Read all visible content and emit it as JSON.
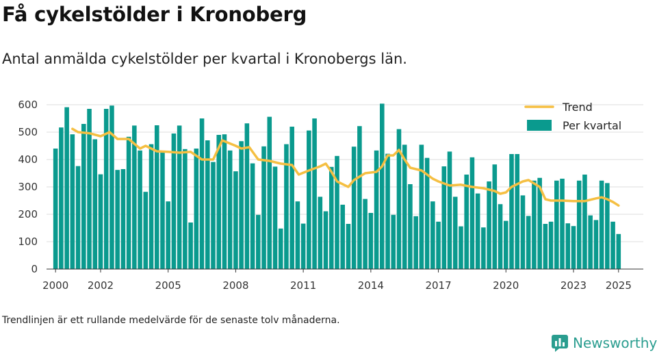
{
  "title": "Få cykelstölder i Kronoberg",
  "subtitle": "Antal anmälda cykelstölder per kvartal i Kronobergs län.",
  "footnote": "Trendlinjen är ett rullande medelvärde för de senaste tolv månaderna.",
  "brand": {
    "name": "Newsworthy",
    "icon": "newsworthy-logo-icon",
    "color": "#2a9d8f"
  },
  "colors": {
    "bars": "#0a9a8e",
    "trend": "#f5bf42",
    "grid": "#dddddd",
    "axis": "#333333"
  },
  "chart_data": {
    "type": "bar",
    "title": "Få cykelstölder i Kronoberg",
    "xlabel": "",
    "ylabel": "",
    "ylim": [
      0,
      600
    ],
    "yticks": [
      0,
      100,
      200,
      300,
      400,
      500,
      600
    ],
    "xticks": [
      "2000",
      "2002",
      "2005",
      "2008",
      "2011",
      "2014",
      "2017",
      "2020",
      "2023",
      "2025"
    ],
    "xlim": [
      1999.6,
      2026.1
    ],
    "legend": {
      "position": "top-right",
      "entries": [
        "Trend",
        "Per kvartal"
      ]
    },
    "grid": true,
    "series": [
      {
        "name": "Per kvartal",
        "type": "bar",
        "start_year": 2000,
        "values": [
          440,
          517,
          591,
          492,
          376,
          530,
          585,
          474,
          346,
          585,
          597,
          362,
          365,
          483,
          524,
          433,
          282,
          456,
          525,
          431,
          247,
          495,
          524,
          438,
          170,
          440,
          550,
          470,
          391,
          490,
          492,
          433,
          357,
          467,
          532,
          386,
          198,
          448,
          556,
          374,
          148,
          456,
          520,
          247,
          166,
          506,
          550,
          264,
          211,
          373,
          413,
          235,
          165,
          447,
          522,
          256,
          205,
          433,
          604,
          421,
          198,
          511,
          454,
          310,
          193,
          454,
          406,
          247,
          173,
          375,
          429,
          264,
          156,
          345,
          408,
          276,
          152,
          320,
          382,
          237,
          176,
          420,
          420,
          269,
          194,
          323,
          333,
          165,
          173,
          323,
          330,
          167,
          157,
          323,
          345,
          196,
          179,
          323,
          314,
          173,
          128
        ]
      },
      {
        "name": "Trend",
        "type": "line",
        "points": [
          [
            2000.75,
            512
          ],
          [
            2001.0,
            500
          ],
          [
            2001.5,
            496
          ],
          [
            2002.0,
            485
          ],
          [
            2002.4,
            500
          ],
          [
            2002.75,
            475
          ],
          [
            2003.25,
            475
          ],
          [
            2003.75,
            440
          ],
          [
            2004.0,
            450
          ],
          [
            2004.5,
            430
          ],
          [
            2005.0,
            428
          ],
          [
            2005.5,
            425
          ],
          [
            2006.0,
            428
          ],
          [
            2006.5,
            400
          ],
          [
            2007.0,
            400
          ],
          [
            2007.4,
            470
          ],
          [
            2008.0,
            450
          ],
          [
            2008.25,
            440
          ],
          [
            2008.6,
            445
          ],
          [
            2009.0,
            400
          ],
          [
            2009.5,
            395
          ],
          [
            2010.0,
            385
          ],
          [
            2010.5,
            380
          ],
          [
            2010.8,
            345
          ],
          [
            2011.25,
            360
          ],
          [
            2011.75,
            375
          ],
          [
            2012.0,
            385
          ],
          [
            2012.25,
            355
          ],
          [
            2012.5,
            320
          ],
          [
            2013.0,
            300
          ],
          [
            2013.25,
            325
          ],
          [
            2013.75,
            350
          ],
          [
            2014.25,
            355
          ],
          [
            2014.5,
            375
          ],
          [
            2014.75,
            415
          ],
          [
            2015.0,
            415
          ],
          [
            2015.25,
            435
          ],
          [
            2015.5,
            400
          ],
          [
            2015.75,
            370
          ],
          [
            2016.25,
            360
          ],
          [
            2016.75,
            330
          ],
          [
            2017.0,
            320
          ],
          [
            2017.5,
            305
          ],
          [
            2018.0,
            308
          ],
          [
            2018.5,
            300
          ],
          [
            2019.0,
            295
          ],
          [
            2019.5,
            285
          ],
          [
            2019.75,
            275
          ],
          [
            2020.0,
            280
          ],
          [
            2020.25,
            300
          ],
          [
            2020.75,
            320
          ],
          [
            2021.0,
            325
          ],
          [
            2021.5,
            300
          ],
          [
            2021.75,
            255
          ],
          [
            2022.0,
            250
          ],
          [
            2022.5,
            250
          ],
          [
            2023.0,
            248
          ],
          [
            2023.5,
            248
          ],
          [
            2024.0,
            258
          ],
          [
            2024.25,
            262
          ],
          [
            2024.5,
            255
          ],
          [
            2024.75,
            245
          ],
          [
            2025.0,
            232
          ]
        ]
      }
    ]
  }
}
